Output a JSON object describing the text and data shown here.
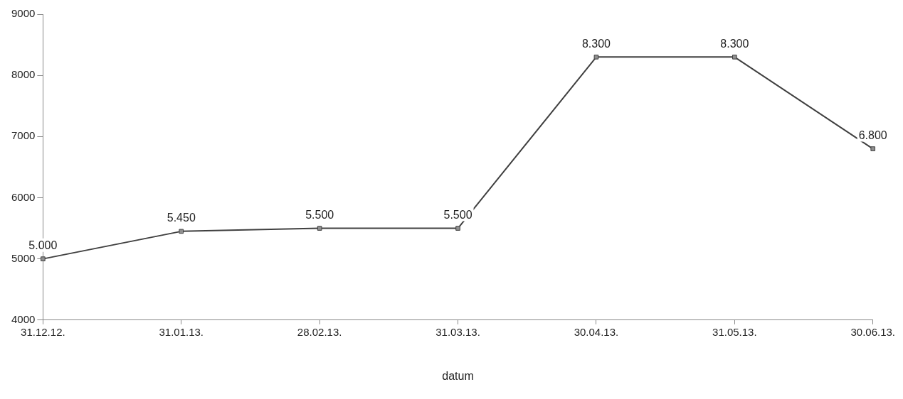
{
  "chart_data": {
    "type": "line",
    "xlabel": "datum",
    "categories": [
      "31.12.12.",
      "31.01.13.",
      "28.02.13.",
      "31.03.13.",
      "30.04.13.",
      "31.05.13.",
      "30.06.13."
    ],
    "series": [
      {
        "color": "#404040",
        "values": [
          5000,
          5450,
          5500,
          5500,
          8300,
          8300,
          6800
        ],
        "value_labels": [
          "5.000",
          "5.450",
          "5.500",
          "5.500",
          "8.300",
          "8.300",
          "6.800"
        ]
      }
    ],
    "ylim": [
      4000,
      9000
    ],
    "yticks": [
      4000,
      5000,
      6000,
      7000,
      8000,
      9000
    ],
    "grid": false,
    "legend": false,
    "marker": "square",
    "line_style": "solid"
  }
}
